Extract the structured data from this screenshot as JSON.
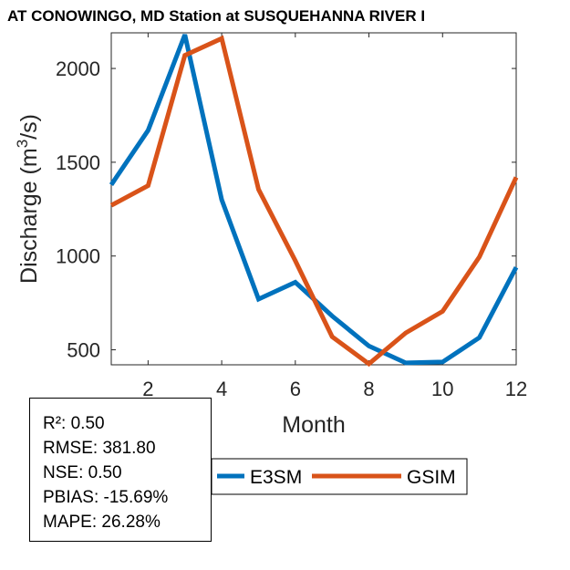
{
  "chart_data": {
    "type": "line",
    "title": "AT CONOWINGO, MD  Station at  SUSQUEHANNA RIVER  I",
    "xlabel": "Month",
    "ylabel": "Discharge (m3/s)",
    "ylabel_parts": {
      "before": "Discharge (m",
      "sup": "3",
      "after": "/s)"
    },
    "xlim": [
      1,
      12
    ],
    "ylim": [
      420,
      2190
    ],
    "xticks": [
      2,
      4,
      6,
      8,
      10,
      12
    ],
    "yticks": [
      500,
      1000,
      1500,
      2000
    ],
    "x": [
      1,
      2,
      3,
      4,
      5,
      6,
      7,
      8,
      9,
      10,
      11,
      12
    ],
    "series": [
      {
        "name": "E3SM",
        "color": "#0072BD",
        "values": [
          1380,
          1670,
          2180,
          1300,
          770,
          860,
          680,
          520,
          430,
          435,
          565,
          940
        ]
      },
      {
        "name": "GSIM",
        "color": "#D95319",
        "values": [
          1270,
          1375,
          2070,
          2160,
          1355,
          975,
          570,
          425,
          590,
          705,
          995,
          1420
        ]
      }
    ],
    "legend_location": "bottom"
  },
  "stats": {
    "r2": "R²: 0.50",
    "rmse": "RMSE: 381.80",
    "nse": "NSE: 0.50",
    "pbias": "PBIAS: -15.69%",
    "mape": "MAPE: 26.28%"
  }
}
